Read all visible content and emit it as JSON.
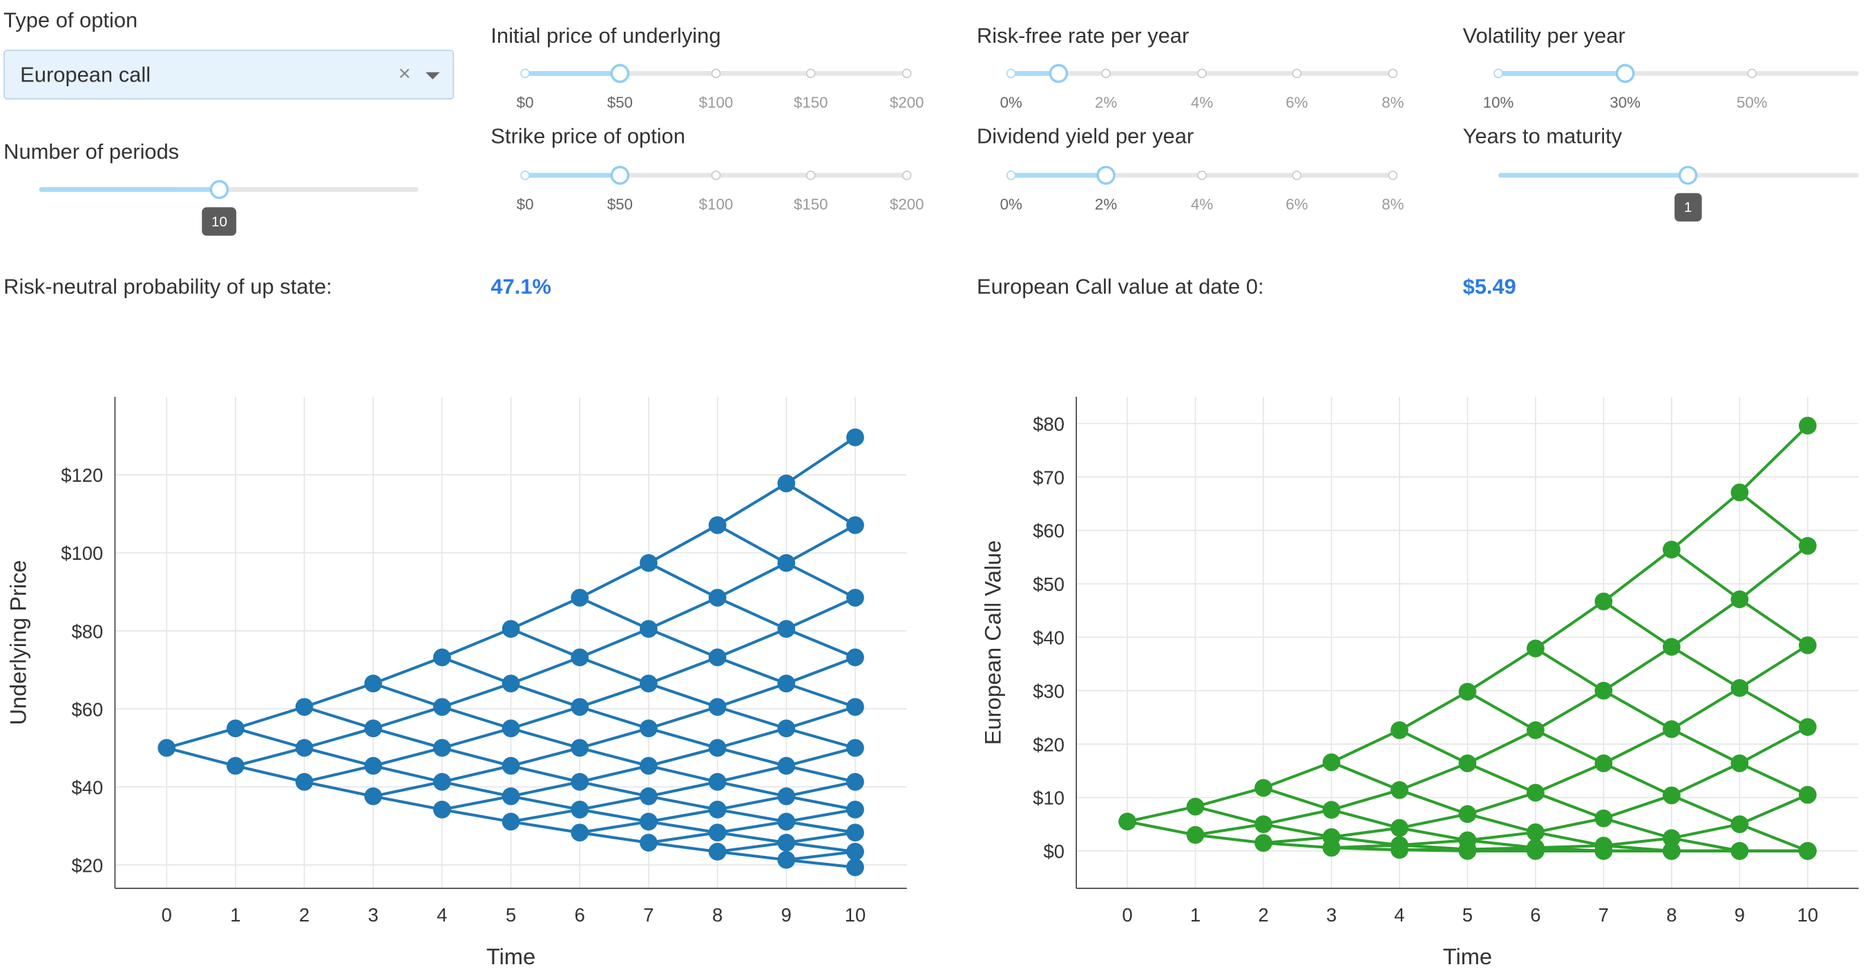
{
  "controls": {
    "option_type_label": "Type of option",
    "option_type_value": "European call",
    "option_type_clear": "×",
    "periods_label": "Number of periods",
    "periods_value": "10",
    "underlying_label": "Initial price of underlying",
    "strike_label": "Strike price of option",
    "price_marks": [
      "$0",
      "$50",
      "$100",
      "$150",
      "$200"
    ],
    "underlying_value": 50,
    "strike_value": 50,
    "rate_label": "Risk-free rate per year",
    "dividend_label": "Dividend yield per year",
    "pct_marks": [
      "0%",
      "2%",
      "4%",
      "6%",
      "8%"
    ],
    "rate_value": 1,
    "dividend_value": 2,
    "vol_label": "Volatility per year",
    "vol_marks": [
      "10%",
      "30%",
      "50%"
    ],
    "vol_value": 30,
    "maturity_label": "Years to maturity",
    "maturity_value": "1"
  },
  "results": {
    "prob_label": "Risk-neutral probability of up state:",
    "prob_value": "47.1%",
    "option_label": "European Call value at date 0:",
    "option_value": "$5.49"
  },
  "colors": {
    "blue": "#1f77b4",
    "green": "#2ca02c",
    "accent": "#2a7ae2"
  },
  "chart_data": [
    {
      "type": "line",
      "xlabel": "Time",
      "ylabel": "Underlying Price",
      "x": [
        0,
        1,
        2,
        3,
        4,
        5,
        6,
        7,
        8,
        9,
        10
      ],
      "ylim": [
        14,
        140
      ],
      "yticks": [
        20,
        40,
        60,
        80,
        100,
        120
      ],
      "ytick_labels": [
        "$20",
        "$40",
        "$60",
        "$80",
        "$100",
        "$120"
      ],
      "color": "#1f77b4",
      "nodes": [
        [
          50
        ],
        [
          45.4,
          55.0
        ],
        [
          41.3,
          50.0,
          60.5
        ],
        [
          37.6,
          45.4,
          55.0,
          66.5
        ],
        [
          34.2,
          41.3,
          50.0,
          60.5,
          73.2
        ],
        [
          31.1,
          37.6,
          45.4,
          55.0,
          66.5,
          80.5
        ],
        [
          28.3,
          34.2,
          41.3,
          50.0,
          60.5,
          73.2,
          88.5
        ],
        [
          25.7,
          31.1,
          37.6,
          45.4,
          55.0,
          66.5,
          80.5,
          97.4
        ],
        [
          23.4,
          28.3,
          34.2,
          41.3,
          50.0,
          60.5,
          73.2,
          88.5,
          107.1
        ],
        [
          21.3,
          25.7,
          31.1,
          37.6,
          45.4,
          55.0,
          66.5,
          80.5,
          97.4,
          117.8
        ],
        [
          19.4,
          23.4,
          28.3,
          34.2,
          41.3,
          50.0,
          60.5,
          73.2,
          88.5,
          107.1,
          129.6
        ]
      ]
    },
    {
      "type": "line",
      "xlabel": "Time",
      "ylabel": "European Call Value",
      "x": [
        0,
        1,
        2,
        3,
        4,
        5,
        6,
        7,
        8,
        9,
        10
      ],
      "ylim": [
        -7,
        85
      ],
      "yticks": [
        0,
        10,
        20,
        30,
        40,
        50,
        60,
        70,
        80
      ],
      "ytick_labels": [
        "$0",
        "$10",
        "$20",
        "$30",
        "$40",
        "$50",
        "$60",
        "$70",
        "$80"
      ],
      "color": "#2ca02c",
      "nodes": [
        [
          5.5
        ],
        [
          3.0,
          8.3
        ],
        [
          1.5,
          5.0,
          11.8
        ],
        [
          0.6,
          2.6,
          7.7,
          16.6
        ],
        [
          0.2,
          1.1,
          4.3,
          11.4,
          22.6
        ],
        [
          0.0,
          0.3,
          2.0,
          6.9,
          16.4,
          29.8
        ],
        [
          0.0,
          0.0,
          0.6,
          3.5,
          10.9,
          22.6,
          37.9
        ],
        [
          0.0,
          0.0,
          0.0,
          1.0,
          6.1,
          16.4,
          30.0,
          46.7
        ],
        [
          0.0,
          0.0,
          0.0,
          0.0,
          2.4,
          10.4,
          22.8,
          38.2,
          56.4
        ],
        [
          0.0,
          0.0,
          0.0,
          0.0,
          0.0,
          5.0,
          16.4,
          30.5,
          47.1,
          67.1
        ],
        [
          0.0,
          0.0,
          0.0,
          0.0,
          0.0,
          0.0,
          10.5,
          23.2,
          38.5,
          57.1,
          79.6
        ]
      ]
    }
  ]
}
